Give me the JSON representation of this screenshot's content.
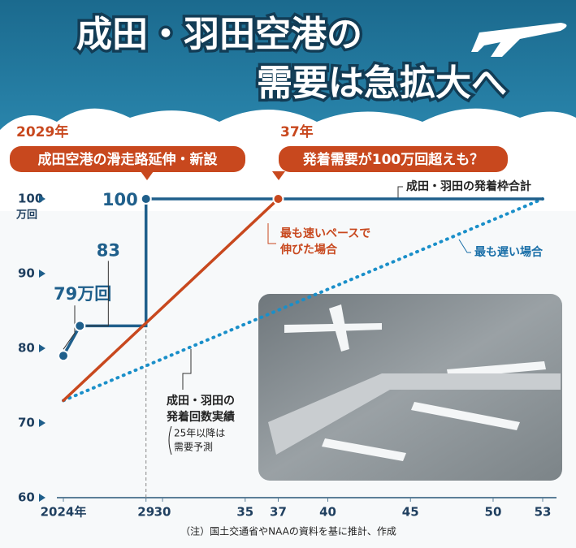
{
  "chart_data": {
    "type": "line",
    "title": [
      "成田・羽田空港の",
      "需要は急拡大へ"
    ],
    "ylabel": "万回",
    "annotations": [
      "2029年",
      "成田空港の滑走路延伸・新設",
      "37年",
      "発着需要が100万回超えも？",
      "成田・羽田の発着枠合計",
      "最も速いペースで",
      "伸びた場合",
      "最も遅い場合",
      "成田・羽田の",
      "発着回数実績",
      "25年以降は",
      "需要予測"
    ],
    "note": "（注）国土交通省やNAAの資料を基に推計、作成",
    "xlim": [
      24,
      53
    ],
    "xticks": [
      {
        "value": 24,
        "label": "2024年"
      },
      29,
      30,
      35,
      37,
      40,
      45,
      50,
      53
    ],
    "ylim": [
      60,
      100
    ],
    "yticks": [
      60,
      70,
      80,
      90,
      100
    ],
    "series": [
      {
        "color": "#1f5f8b",
        "style": "solid",
        "x": [
          24,
          25,
          29,
          29,
          53
        ],
        "values": [
          79,
          83,
          83,
          100,
          100
        ],
        "value_labels": [
          "79万回",
          "83",
          null,
          "100",
          null
        ]
      },
      {
        "color": "#c8481e",
        "style": "solid",
        "x": [
          24,
          37
        ],
        "values": [
          73,
          100
        ]
      },
      {
        "color": "#1a8fc9",
        "style": "dotted",
        "x": [
          24,
          53
        ],
        "values": [
          73,
          100
        ]
      }
    ]
  }
}
